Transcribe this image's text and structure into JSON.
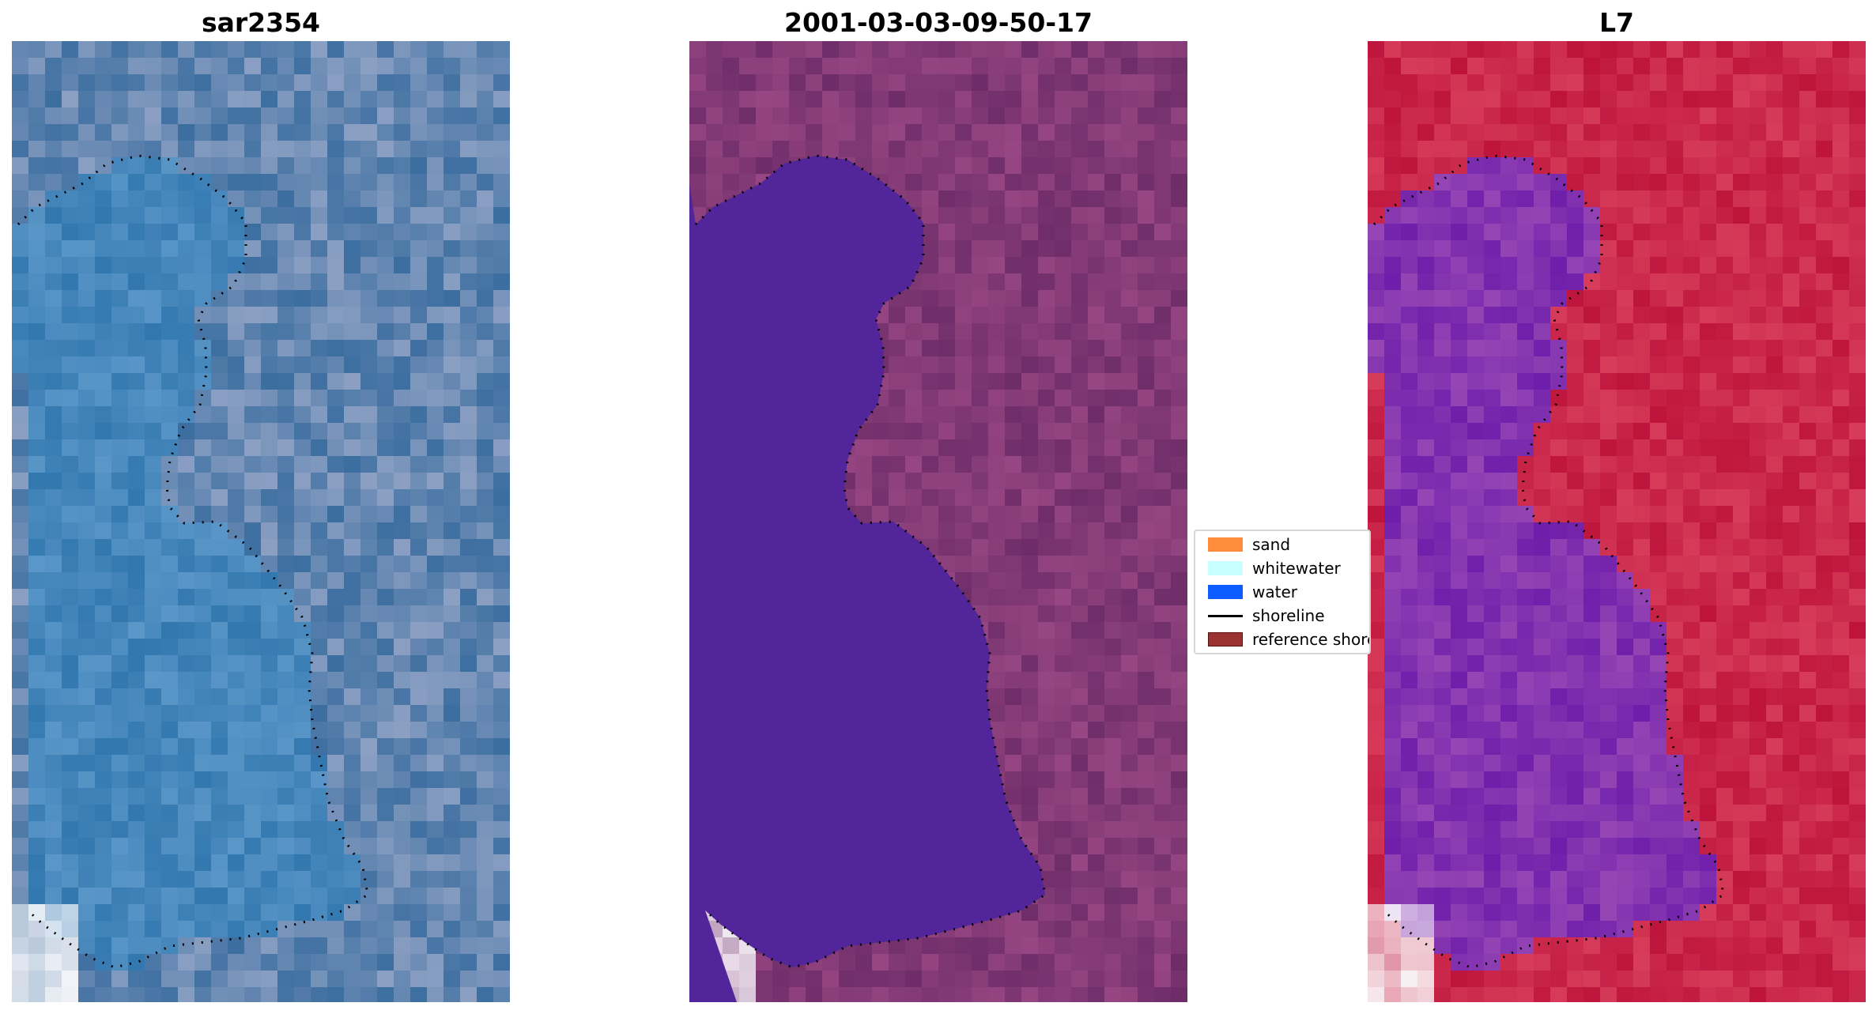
{
  "panels": [
    {
      "title": "sar2354"
    },
    {
      "title": "2001-03-03-09-50-17"
    },
    {
      "title": "L7"
    }
  ],
  "legend": {
    "items": [
      {
        "label": "sand",
        "color": "#ff8c3a",
        "kind": "patch"
      },
      {
        "label": "whitewater",
        "color": "#c8ffff",
        "kind": "patch"
      },
      {
        "label": "water",
        "color": "#0d5cff",
        "kind": "patch"
      },
      {
        "label": "shoreline",
        "color": "#000000",
        "kind": "line"
      },
      {
        "label": "reference shoreline buffer",
        "color": "#9a3232",
        "kind": "patch"
      }
    ]
  },
  "colors": {
    "panel1_base": "#4a7fb2",
    "panel2_base": "#7a3276",
    "panel2_water": "#52259a",
    "panel3_base": "#c41e4a",
    "panel3_water": "#6a20b0"
  }
}
